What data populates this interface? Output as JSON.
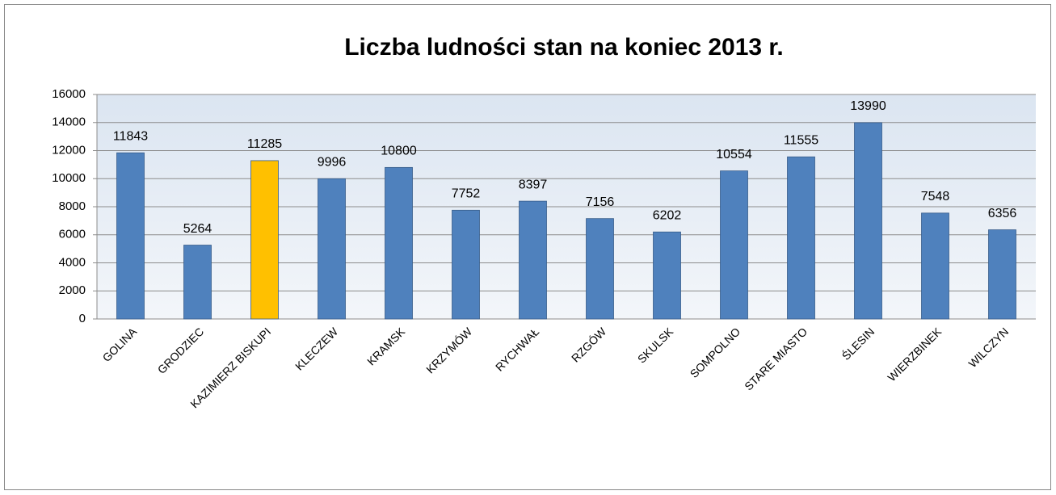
{
  "chart_data": {
    "type": "bar",
    "title": "Liczba ludności stan na koniec 2013 r.",
    "categories": [
      "GOLINA",
      "GRODZIEC",
      "KAZIMIERZ BISKUPI",
      "KLECZEW",
      "KRAMSK",
      "KRZYMÓW",
      "RYCHWAŁ",
      "RZGÓW",
      "SKULSK",
      "SOMPOLNO",
      "STARE MIASTO",
      "ŚLESIN",
      "WIERZBINEK",
      "WILCZYN"
    ],
    "values": [
      11843,
      5264,
      11285,
      9996,
      10800,
      7752,
      8397,
      7156,
      6202,
      10554,
      11555,
      13990,
      7548,
      6356
    ],
    "colors": [
      "#4f81bd",
      "#4f81bd",
      "#ffc000",
      "#4f81bd",
      "#4f81bd",
      "#4f81bd",
      "#4f81bd",
      "#4f81bd",
      "#4f81bd",
      "#4f81bd",
      "#4f81bd",
      "#4f81bd",
      "#4f81bd",
      "#4f81bd"
    ],
    "ylim": [
      0,
      16000
    ],
    "yticks": [
      0,
      2000,
      4000,
      6000,
      8000,
      10000,
      12000,
      14000,
      16000
    ],
    "grid": true
  }
}
